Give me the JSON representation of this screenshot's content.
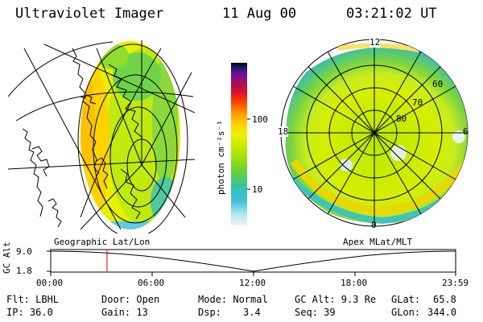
{
  "header": {
    "instrument": "Ultraviolet Imager",
    "date": "11 Aug 00",
    "time": "03:21:02 UT"
  },
  "colorbar": {
    "unit_label": "photon cm⁻²s⁻¹",
    "ticks": [
      {
        "label": "100",
        "value": 100
      },
      {
        "label": "10",
        "value": 10
      }
    ],
    "colors": [
      "#000000",
      "#1a1a70",
      "#6a10a0",
      "#a0105a",
      "#d8102a",
      "#ff4000",
      "#ff9900",
      "#ffd300",
      "#eef000",
      "#b8e800",
      "#6cd430",
      "#30c4a0",
      "#40c0e0",
      "#b0e8f0",
      "#f0f0f0"
    ]
  },
  "map_left": {
    "label": "Geographic Lat/Lon"
  },
  "map_right": {
    "label": "Apex MLat/MLT",
    "mlt_labels": [
      "12",
      "18",
      "6",
      "0"
    ],
    "lat_labels": [
      "60",
      "70",
      "80"
    ]
  },
  "timeline": {
    "ylabel": "GC Alt",
    "y_ticks": [
      "9.0",
      "1.8"
    ],
    "x_ticks": [
      "00:00",
      "06:00",
      "12:00",
      "18:00",
      "23:59"
    ],
    "current_time_fraction": 0.139,
    "marker_color": "#cc0000"
  },
  "info": {
    "row1": {
      "flt": "Flt: LBHL",
      "door": "Door: Open",
      "mode": "Mode: Normal",
      "gcalt": "GC Alt: 9.3 Re",
      "glat_label": "GLat:",
      "glat_value": "65.8"
    },
    "row2": {
      "ip": "IP: 36.0",
      "gain": "Gain: 13",
      "dsp_label": "Dsp:",
      "dsp_value": "3.4",
      "seq": "Seq: 39",
      "glon_label": "GLon:",
      "glon_value": "344.0"
    }
  }
}
